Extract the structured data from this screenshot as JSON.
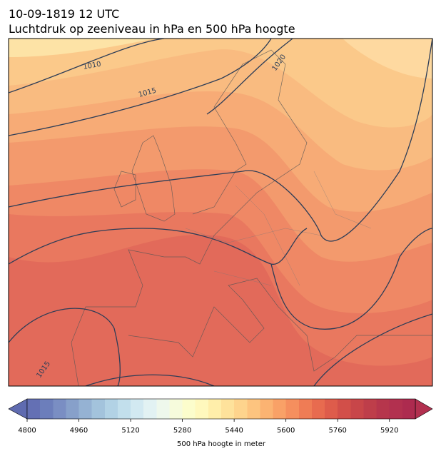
{
  "map": {
    "title_lines": [
      "10-09-1819 12 UTC",
      "Luchtdruk op zeeniveau in hPa en 500 hPa hoogte"
    ],
    "isobar_labels": [
      "1010",
      "1015",
      "1020",
      "1015"
    ]
  },
  "colorbar": {
    "lim": [
      4800,
      6000
    ],
    "ticks": [
      4800,
      4960,
      5120,
      5280,
      5440,
      5600,
      5760,
      5920
    ],
    "label": "500 hPa hoogte in meter"
  }
}
